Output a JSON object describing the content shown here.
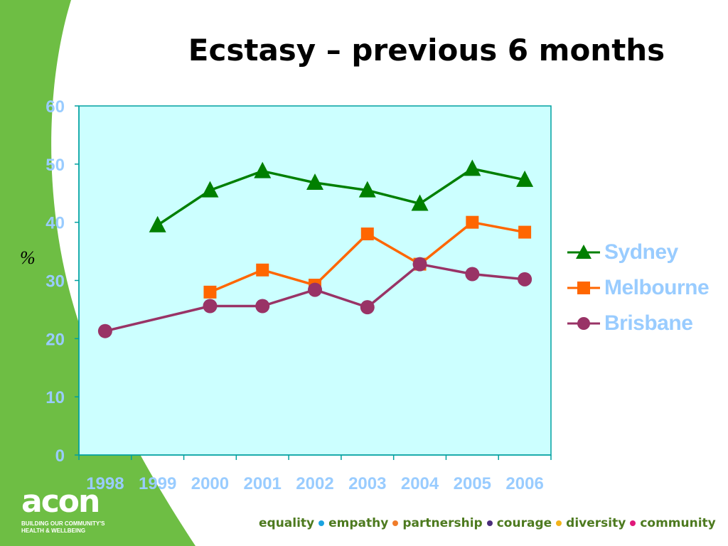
{
  "title": "Ecstasy – previous 6 months",
  "colors": {
    "green_swoosh": "#6ebe44",
    "plot_background": "#ccffff",
    "axis": "#00a0a0",
    "tick_label": "#99ccff",
    "values_text": "#4d7a1f"
  },
  "chart_data": {
    "type": "line",
    "title": "Ecstasy – previous 6 months",
    "xlabel": "",
    "ylabel": "%",
    "categories": [
      "1998",
      "1999",
      "2000",
      "2001",
      "2002",
      "2003",
      "2004",
      "2005",
      "2006"
    ],
    "ylim": [
      0,
      60
    ],
    "yticks": [
      0,
      10,
      20,
      30,
      40,
      50,
      60
    ],
    "grid": false,
    "legend": "right",
    "series": [
      {
        "name": "Sydney",
        "marker": "triangle",
        "color": "#007f00",
        "values": [
          null,
          39.5,
          45.5,
          48.8,
          46.8,
          45.5,
          43.2,
          49.2,
          47.3
        ]
      },
      {
        "name": "Melbourne",
        "marker": "square",
        "color": "#ff6600",
        "values": [
          null,
          null,
          28,
          31.8,
          29.2,
          38,
          32.8,
          40,
          38.3
        ]
      },
      {
        "name": "Brisbane",
        "marker": "circle",
        "color": "#993366",
        "values": [
          21.3,
          null,
          25.6,
          25.6,
          28.4,
          25.4,
          32.8,
          31.1,
          30.2
        ]
      }
    ]
  },
  "logo": {
    "word": "acon",
    "tagline_line1": "BUILDING OUR COMMUNITY'S",
    "tagline_line2": "HEALTH & WELLBEING"
  },
  "values_bar": [
    {
      "label": "equality",
      "dot_color": "#1aa3e0"
    },
    {
      "label": "empathy",
      "dot_color": "#f07c2a"
    },
    {
      "label": "partnership",
      "dot_color": "#4a2c7a"
    },
    {
      "label": "courage",
      "dot_color": "#f2b31a"
    },
    {
      "label": "diversity",
      "dot_color": "#e0187a"
    },
    {
      "label": "community",
      "dot_color": null
    }
  ]
}
